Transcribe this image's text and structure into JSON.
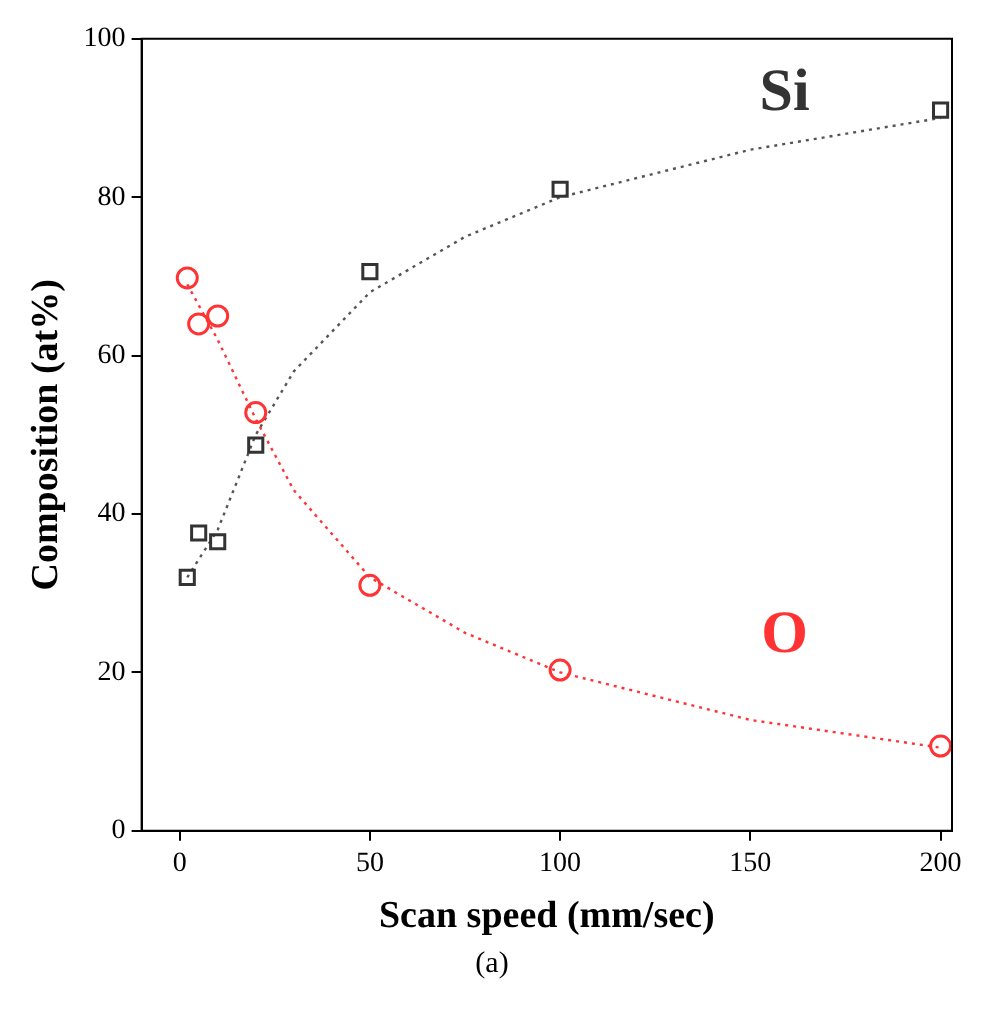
{
  "chart_data": {
    "type": "scatter",
    "xlabel": "Scan speed (mm/sec)",
    "ylabel": "Composition (at%)",
    "xlim": [
      -10,
      203
    ],
    "xticks": [
      0,
      50,
      100,
      150,
      200
    ],
    "ylim": [
      0,
      100
    ],
    "yticks": [
      0,
      20,
      40,
      60,
      80,
      100
    ],
    "grid": false,
    "legend": false,
    "annotations": [
      "(a)"
    ],
    "series": [
      {
        "name": "Si",
        "marker": "square",
        "color": "#333333",
        "x": [
          2,
          5,
          10,
          20,
          50,
          100,
          200
        ],
        "values": [
          32,
          37.6,
          36.5,
          48.7,
          70.6,
          81,
          91
        ]
      },
      {
        "name": "O",
        "marker": "circle",
        "color": "#ff3333",
        "x": [
          2,
          5,
          10,
          20,
          50,
          100,
          200
        ],
        "values": [
          69.8,
          64,
          65,
          52.8,
          31,
          20.3,
          10.7
        ]
      },
      {
        "type": "line",
        "line_style": "dotted",
        "marker": "none",
        "color": "#555555",
        "x": [
          2,
          10,
          20,
          30,
          50,
          75,
          100,
          150,
          200
        ],
        "values": [
          32,
          38,
          50,
          58,
          68,
          75,
          80,
          86,
          90
        ]
      },
      {
        "type": "line",
        "line_style": "dotted",
        "marker": "none",
        "color": "#ff3333",
        "x": [
          2,
          10,
          20,
          30,
          50,
          75,
          100,
          150,
          200
        ],
        "values": [
          69,
          62,
          52,
          43,
          32,
          25,
          20,
          14,
          10.5
        ]
      }
    ]
  }
}
